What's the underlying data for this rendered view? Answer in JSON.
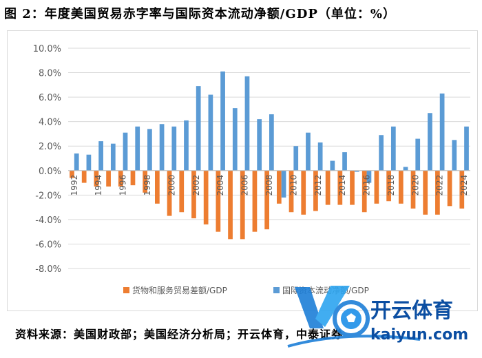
{
  "header": {
    "title": "图 2：年度美国贸易赤字率与国际资本流动净额/GDP（单位：%）"
  },
  "footer": {
    "source": "资料来源：美国财政部；美国经济分析局；开云体育，中泰证券"
  },
  "watermark": {
    "brand": "开云体育",
    "domain": "kaiyun.com"
  },
  "colors": {
    "trade": "#ED7D31",
    "capital": "#5B9BD5",
    "grid": "#D9D9D9",
    "axis_text": "#595959"
  },
  "chart_data": {
    "type": "bar",
    "title": "",
    "xlabel": "",
    "ylabel": "",
    "ylim": [
      -8,
      10
    ],
    "y_ticks": [
      "10.0%",
      "8.0%",
      "6.0%",
      "4.0%",
      "2.0%",
      "0.0%",
      "-2.0%",
      "-4.0%",
      "-6.0%",
      "-8.0%"
    ],
    "y_tick_values": [
      10,
      8,
      6,
      4,
      2,
      0,
      -2,
      -4,
      -6,
      -8
    ],
    "grid": true,
    "legend_position": "bottom",
    "categories": [
      "1992",
      "1993",
      "1994",
      "1995",
      "1996",
      "1997",
      "1998",
      "1999",
      "2000",
      "2001",
      "2002",
      "2003",
      "2004",
      "2005",
      "2006",
      "2007",
      "2008",
      "2009",
      "2010",
      "2011",
      "2012",
      "2013",
      "2014",
      "2015",
      "2016",
      "2017",
      "2018",
      "2019",
      "2020",
      "2021",
      "2022",
      "2023",
      "2024"
    ],
    "x_tick_labels": [
      "1992",
      "1994",
      "1996",
      "1998",
      "2000",
      "2002",
      "2004",
      "2006",
      "2008",
      "2010",
      "2012",
      "2014",
      "2016",
      "2018",
      "2020",
      "2022",
      "2024"
    ],
    "series": [
      {
        "name": "货物和服务贸易差额/GDP",
        "color": "#ED7D31",
        "values": [
          -0.6,
          -1.0,
          -1.3,
          -1.3,
          -1.3,
          -1.2,
          -1.8,
          -2.7,
          -3.7,
          -3.4,
          -3.9,
          -4.4,
          -5.0,
          -5.6,
          -5.6,
          -5.0,
          -4.8,
          -2.7,
          -3.4,
          -3.6,
          -3.3,
          -2.8,
          -2.8,
          -2.8,
          -3.4,
          -2.7,
          -2.5,
          -2.7,
          -3.1,
          -3.6,
          -3.6,
          -2.9,
          -3.1
        ]
      },
      {
        "name": "国际资本流动净额/GDP",
        "color": "#5B9BD5",
        "values": [
          1.4,
          1.3,
          2.4,
          2.2,
          3.1,
          3.6,
          3.4,
          3.8,
          3.6,
          4.1,
          6.9,
          6.2,
          8.1,
          5.1,
          7.7,
          4.2,
          4.6,
          -2.2,
          2.0,
          3.1,
          2.3,
          0.8,
          1.5,
          -0.1,
          -1.0,
          2.9,
          3.6,
          0.3,
          2.6,
          4.7,
          6.3,
          2.5,
          3.6
        ]
      }
    ]
  }
}
